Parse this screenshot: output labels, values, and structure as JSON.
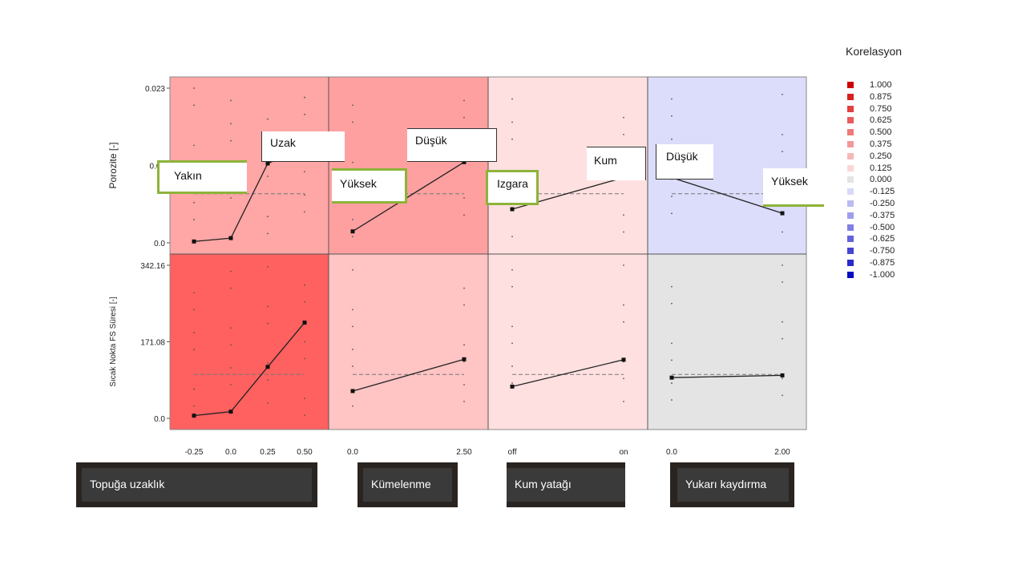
{
  "chart_data": {
    "type": "line",
    "legend": {
      "title": "Korelasyon",
      "items": [
        {
          "label": "1.000",
          "color": "#cc0000"
        },
        {
          "label": "0.875",
          "color": "#d92020"
        },
        {
          "label": "0.750",
          "color": "#e23f3f"
        },
        {
          "label": "0.625",
          "color": "#ea5c5c"
        },
        {
          "label": "0.500",
          "color": "#ef7a7a"
        },
        {
          "label": "0.375",
          "color": "#f39898"
        },
        {
          "label": "0.250",
          "color": "#f7b7b7"
        },
        {
          "label": "0.125",
          "color": "#fbd6d6"
        },
        {
          "label": "0.000",
          "color": "#e4e4e4"
        },
        {
          "label": "-0.125",
          "color": "#d8d8fa"
        },
        {
          "label": "-0.250",
          "color": "#bbbbf3"
        },
        {
          "label": "-0.375",
          "color": "#9e9eec"
        },
        {
          "label": "-0.500",
          "color": "#8080e4"
        },
        {
          "label": "-0.625",
          "color": "#6363dc"
        },
        {
          "label": "-0.750",
          "color": "#4545d4"
        },
        {
          "label": "-0.875",
          "color": "#2828cc"
        },
        {
          "label": "-1.000",
          "color": "#0a0ac4"
        }
      ]
    },
    "rows": [
      {
        "ylabel": "Porozite [-]",
        "ticks": [
          {
            "v": 0.0,
            "label": "0.0"
          },
          {
            "v": 0.0115,
            "label": "0.01"
          },
          {
            "v": 0.023,
            "label": "0.023"
          }
        ],
        "ymin": 0.0,
        "ymax": 0.023,
        "mean": 0.0073
      },
      {
        "ylabel": "Sıcak Nokta FS Süresi [-]",
        "ticks": [
          {
            "v": 0.0,
            "label": "0.0"
          },
          {
            "v": 171.08,
            "label": "171.08"
          },
          {
            "v": 342.16,
            "label": "342.16"
          }
        ],
        "ymin": 0.0,
        "ymax": 342.16,
        "mean": 98
      }
    ],
    "columns": [
      {
        "factor": "Topuğa uzaklık",
        "x_ticks": [
          "-0.25",
          "0.0",
          "0.25",
          "0.50"
        ]
      },
      {
        "factor": "Kümelenme",
        "x_ticks": [
          "0.0",
          "2.50"
        ]
      },
      {
        "factor": "Kum yatağı",
        "x_ticks": [
          "off",
          "on"
        ]
      },
      {
        "factor": "Yukarı kaydırma",
        "x_ticks": [
          "0.0",
          "2.00"
        ]
      }
    ],
    "cells": [
      {
        "row": 0,
        "col": 0,
        "corr": 0.375,
        "x": [
          -0.25,
          0.0,
          0.25,
          0.5
        ],
        "y": [
          0.0002,
          0.0007,
          0.0118,
          0.0142
        ]
      },
      {
        "row": 0,
        "col": 1,
        "corr": 0.5,
        "x": [
          0.0,
          2.5
        ],
        "y": [
          0.0017,
          0.012
        ]
      },
      {
        "row": 0,
        "col": 2,
        "corr": 0.125,
        "x": [
          0,
          1
        ],
        "y": [
          0.005,
          0.0097
        ]
      },
      {
        "row": 0,
        "col": 3,
        "corr": -0.125,
        "x": [
          0.0,
          2.0
        ],
        "y": [
          0.0097,
          0.0044
        ]
      },
      {
        "row": 1,
        "col": 0,
        "corr": 0.75,
        "x": [
          -0.25,
          0.0,
          0.25,
          0.5
        ],
        "y": [
          6,
          15,
          115,
          214
        ]
      },
      {
        "row": 1,
        "col": 1,
        "corr": 0.25,
        "x": [
          0.0,
          2.5
        ],
        "y": [
          61,
          132
        ]
      },
      {
        "row": 1,
        "col": 2,
        "corr": 0.125,
        "x": [
          0,
          1
        ],
        "y": [
          71,
          131
        ]
      },
      {
        "row": 1,
        "col": 3,
        "corr": 0.0,
        "x": [
          0.0,
          2.0
        ],
        "y": [
          91,
          96
        ]
      }
    ]
  },
  "callouts": [
    {
      "id": "yakin",
      "text": "Yakın"
    },
    {
      "id": "uzak",
      "text": "Uzak"
    },
    {
      "id": "yuksek1",
      "text": "Yüksek"
    },
    {
      "id": "dusuk1",
      "text": "Düşük"
    },
    {
      "id": "izgara",
      "text": "Izgara"
    },
    {
      "id": "kum",
      "text": "Kum"
    },
    {
      "id": "dusuk2",
      "text": "Düşük"
    },
    {
      "id": "yuksek2",
      "text": "Yüksek"
    }
  ],
  "footers": [
    {
      "id": "f1",
      "text": "Topuğa uzaklık"
    },
    {
      "id": "f2",
      "text": "Kümelenme"
    },
    {
      "id": "f3",
      "text": "Kum yatağı"
    },
    {
      "id": "f4",
      "text": "Yukarı kaydırma"
    }
  ]
}
